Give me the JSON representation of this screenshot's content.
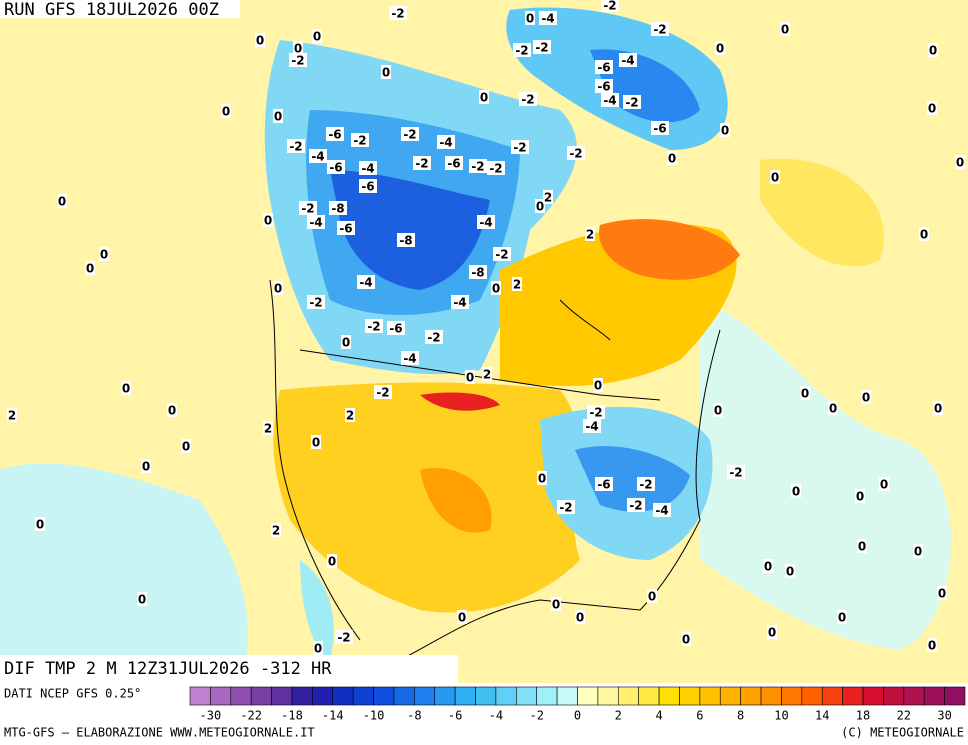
{
  "header": {
    "run": "RUN GFS 18JUL2026 00Z"
  },
  "map": {
    "contour_labels": [
      -2,
      0,
      -4,
      -2,
      -2,
      0,
      0,
      0,
      0,
      -2,
      0,
      -2,
      -2,
      0,
      0,
      -6,
      -4,
      -6,
      -4,
      -2,
      0,
      -2,
      0,
      0,
      -6,
      -2,
      -2,
      -4,
      -2,
      -4,
      -6,
      -4,
      -6,
      -2,
      -6,
      -2,
      -2,
      -2,
      -2,
      -6,
      0,
      0,
      0,
      0,
      0,
      0,
      0,
      -2,
      -8,
      -4,
      -6,
      -8,
      -4,
      0,
      2,
      2,
      -2,
      -8,
      -4,
      -4,
      0,
      2,
      0,
      0,
      0,
      0,
      -2,
      -2,
      -6,
      -2,
      0,
      -4,
      0,
      -2,
      0,
      2,
      0,
      2,
      0,
      2,
      0,
      0,
      0,
      0,
      0,
      -2,
      -4,
      2,
      0,
      0,
      0,
      0,
      -6,
      -2,
      -2,
      0,
      0,
      0,
      -2,
      -2,
      -4,
      0,
      2,
      0,
      0,
      0,
      0,
      0,
      0,
      0,
      0,
      0,
      0,
      0,
      0,
      -2,
      0,
      0,
      0,
      0
    ]
  },
  "footer": {
    "title": "DIF TMP 2 M 12Z31JUL2026 -312 HR",
    "source": "DATI NCEP GFS 0.25°",
    "credit": "MTG-GFS — ELABORAZIONE WWW.METEOGIORNALE.IT",
    "copyright": "(C) METEOGIORNALE"
  },
  "colorbar": {
    "labels": [
      -30,
      -22,
      -18,
      -14,
      -10,
      -8,
      -6,
      -4,
      -2,
      0,
      2,
      4,
      6,
      8,
      10,
      14,
      18,
      22,
      30
    ],
    "colors": [
      "#c080d0",
      "#a868c0",
      "#9050b0",
      "#7840a0",
      "#6030a0",
      "#3020a0",
      "#2020b0",
      "#1030c0",
      "#1040d0",
      "#1050e0",
      "#1868e8",
      "#2080f0",
      "#2898f0",
      "#30b0f0",
      "#40c0f0",
      "#60d0f8",
      "#80e0f8",
      "#a0f0f8",
      "#c8f8f8",
      "#ffffc0",
      "#fff8a0",
      "#fff070",
      "#ffe840",
      "#ffe000",
      "#ffd000",
      "#ffc000",
      "#ffb000",
      "#ffa000",
      "#ff9000",
      "#ff7800",
      "#ff6000",
      "#f84010",
      "#e82020",
      "#d81030",
      "#c01040",
      "#b01050",
      "#a01058",
      "#901060"
    ]
  }
}
